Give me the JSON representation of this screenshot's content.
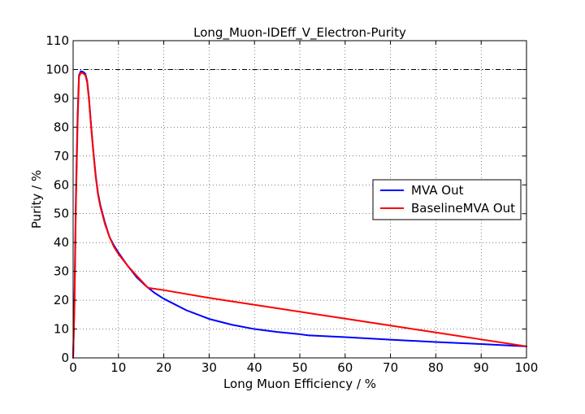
{
  "chart_data": {
    "type": "line",
    "title": "Long_Muon-IDEff_V_Electron-Purity",
    "xlabel": "Long Muon Efficiency / %",
    "ylabel": "Purity / %",
    "xlim": [
      0,
      100
    ],
    "ylim": [
      0,
      110
    ],
    "xticks": [
      "0",
      "10",
      "20",
      "30",
      "40",
      "50",
      "60",
      "70",
      "80",
      "90",
      "100"
    ],
    "yticks": [
      "0",
      "10",
      "20",
      "30",
      "40",
      "50",
      "60",
      "70",
      "80",
      "90",
      "100",
      "110"
    ],
    "grid": true,
    "reference_line": {
      "y": 100,
      "style": "dash-dot",
      "color": "#000000"
    },
    "legend_position": "center-right",
    "series": [
      {
        "name": "MVA Out",
        "color": "#0000ff",
        "x": [
          0,
          0.3,
          0.6,
          1.0,
          1.3,
          1.7,
          2.2,
          2.7,
          3.1,
          3.5,
          4.0,
          4.5,
          5.0,
          5.5,
          6.0,
          7.0,
          8.0,
          9.0,
          10.0,
          12.0,
          14.0,
          16.0,
          18.0,
          20.0,
          25.0,
          30.0,
          35.0,
          40.0,
          45.0,
          50.0,
          52.0,
          60.0,
          70.0,
          80.0,
          90.0,
          100.0
        ],
        "y": [
          0,
          20,
          55,
          85,
          98,
          99.4,
          99.2,
          98.5,
          96,
          90,
          80,
          71,
          63,
          57,
          53,
          47,
          42,
          39,
          36.5,
          32,
          28,
          25,
          22.5,
          20.5,
          16.5,
          13.5,
          11.5,
          10.0,
          9.0,
          8.2,
          7.8,
          7.2,
          6.3,
          5.5,
          4.8,
          4.0
        ]
      },
      {
        "name": "BaselineMVA Out",
        "color": "#ff0000",
        "x": [
          0,
          0.3,
          0.6,
          1.0,
          1.3,
          1.7,
          2.2,
          2.7,
          3.1,
          3.5,
          4.0,
          4.5,
          5.0,
          5.5,
          6.0,
          7.0,
          8.0,
          9.0,
          10.0,
          12.0,
          14.0,
          16.5,
          20.0,
          30.0,
          40.0,
          50.0,
          60.0,
          70.0,
          80.0,
          90.0,
          100.0
        ],
        "y": [
          0,
          18,
          52,
          82,
          97.5,
          98.9,
          98.7,
          98.0,
          95.5,
          89.5,
          79.5,
          70.5,
          62.5,
          56.5,
          52.5,
          46.5,
          42,
          38.5,
          36,
          32,
          28.5,
          24.3,
          23.5,
          20.8,
          18.4,
          16.0,
          13.6,
          11.2,
          8.8,
          6.4,
          4.0
        ]
      }
    ]
  }
}
